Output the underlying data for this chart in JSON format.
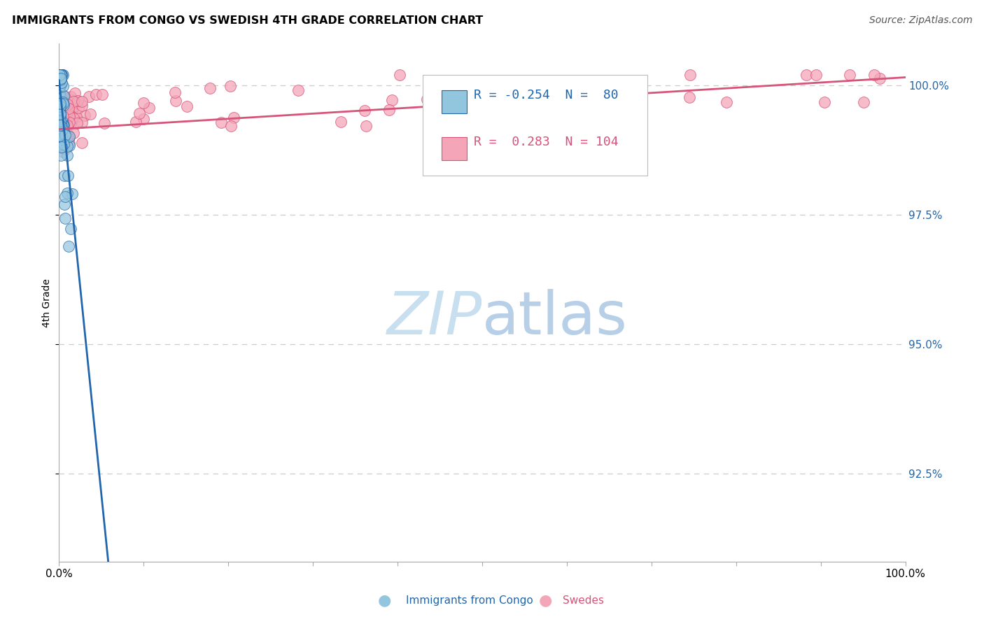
{
  "title": "IMMIGRANTS FROM CONGO VS SWEDISH 4TH GRADE CORRELATION CHART",
  "source": "Source: ZipAtlas.com",
  "ylabel": "4th Grade",
  "yaxis_labels": [
    "100.0%",
    "97.5%",
    "95.0%",
    "92.5%"
  ],
  "yaxis_values": [
    1.0,
    0.975,
    0.95,
    0.925
  ],
  "xmin": 0.0,
  "xmax": 1.0,
  "ymin": 0.908,
  "ymax": 1.008,
  "legend_label1": "Immigrants from Congo",
  "legend_label2": "Swedes",
  "r1": -0.254,
  "n1": 80,
  "r2": 0.283,
  "n2": 104,
  "color_blue": "#92c5de",
  "color_pink": "#f4a6b8",
  "color_blue_dark": "#2166ac",
  "color_pink_dark": "#d6537a",
  "watermark_color": "#c8dff0",
  "grid_color": "#cccccc",
  "spine_color": "#aaaaaa",
  "title_fontsize": 11.5,
  "source_fontsize": 10,
  "tick_fontsize": 11,
  "ylabel_fontsize": 10,
  "legend_fontsize": 13
}
